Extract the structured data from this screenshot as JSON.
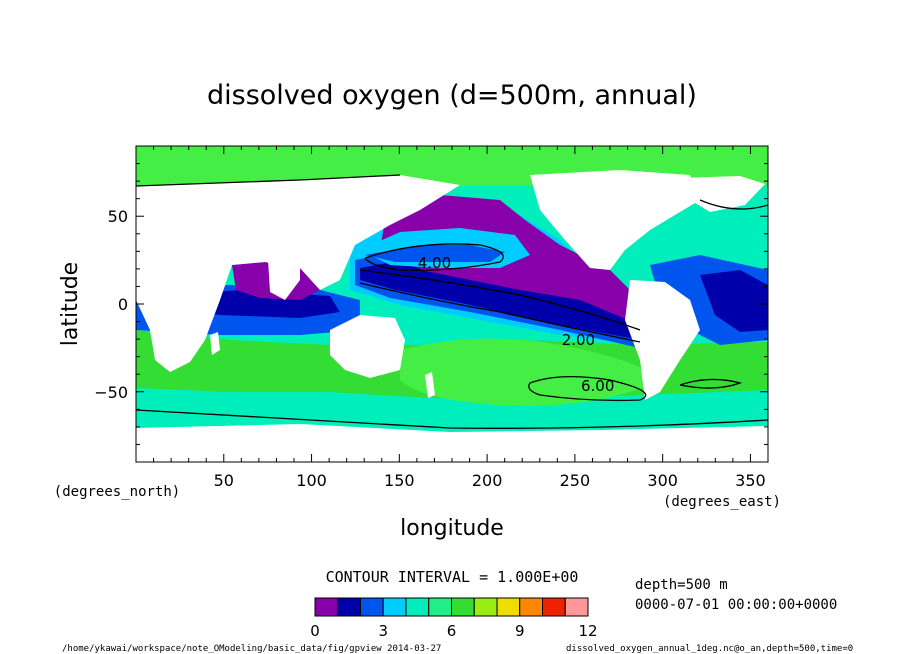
{
  "chart_data": {
    "type": "heatmap",
    "title": "dissolved oxygen (d=500m, annual)",
    "xlabel": "longitude",
    "ylabel": "latitude",
    "x_unit_label": "(degrees_east)",
    "y_unit_label": "(degrees_north)",
    "xlim": [
      0,
      360
    ],
    "ylim": [
      -90,
      90
    ],
    "x_ticks": [
      50,
      100,
      150,
      200,
      250,
      300,
      350
    ],
    "y_ticks": [
      50,
      0,
      -50
    ],
    "contour_interval_label": "CONTOUR INTERVAL = 1.000E+00",
    "contour_labels": [
      {
        "text": "4.00",
        "lon": 170,
        "lat": 24
      },
      {
        "text": "2.00",
        "lon": 252,
        "lat": -20
      },
      {
        "text": "6.00",
        "lon": 263,
        "lat": -46
      }
    ],
    "colorbar": {
      "levels": [
        0,
        1,
        2,
        3,
        4,
        5,
        6,
        7,
        8,
        9,
        10,
        11,
        12
      ],
      "tick_labels": [
        "0",
        "3",
        "6",
        "9",
        "12"
      ],
      "colors": [
        "#8800aa",
        "#0000aa",
        "#0055ee",
        "#00ccff",
        "#00eebb",
        "#22ee88",
        "#33dd33",
        "#99ee11",
        "#eedd00",
        "#ff8800",
        "#ee2200",
        "#ff9999"
      ]
    },
    "fill_colors": {
      "land": "#ffffff",
      "arctic": "#44ee44",
      "southern_ocean": "#00eebb",
      "mid_south": "#33dd33",
      "gyre_south": "#44ee44",
      "equatorial_indian": "#0000aa",
      "indian_band": "#0055ee",
      "north_pacific_omz": "#8800aa",
      "eq_pacific_deep": "#0000aa",
      "eq_pacific_mid": "#0055ee",
      "nw_pacific_cyan": "#00ccff",
      "north_atlantic": "#00eebb",
      "tropical_atlantic": "#0055ee"
    },
    "info": {
      "depth": "depth=500 m",
      "time": "0000-07-01 00:00:00+0000",
      "footer_left": "/home/ykawai/workspace/note_OModeling/basic_data/fig/gpview  2014-03-27",
      "footer_right": "dissolved_oxygen_annual_1deg.nc@o_an,depth=500,time=0"
    }
  }
}
